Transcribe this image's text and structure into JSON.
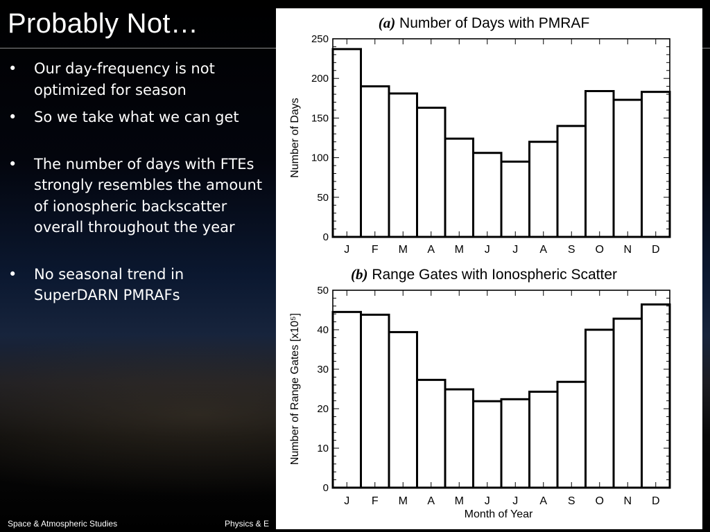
{
  "slide": {
    "title": "Probably Not…",
    "bullets": [
      "Our day-frequency is not optimized for season",
      "So we take what we can get",
      "The number of days with FTEs strongly resembles the amount of ionospheric backscatter overall throughout the year",
      "No seasonal trend in SuperDARN PMRAFs"
    ],
    "bullet_glyph": "•",
    "footer_left": "Space & Atmospheric Studies",
    "footer_mid": "Physics & E"
  },
  "chart_data": [
    {
      "type": "bar",
      "panel_label": "(a)",
      "title": "Number of Days with PMRAF",
      "ylabel": "Number of Days",
      "xlabel": "",
      "categories": [
        "J",
        "F",
        "M",
        "A",
        "M",
        "J",
        "J",
        "A",
        "S",
        "O",
        "N",
        "D"
      ],
      "values": [
        237,
        190,
        181,
        163,
        124,
        106,
        95,
        120,
        140,
        184,
        173,
        183
      ],
      "ylim": [
        0,
        250
      ],
      "yticks": [
        0,
        50,
        100,
        150,
        200,
        250
      ],
      "grid": false
    },
    {
      "type": "bar",
      "panel_label": "(b)",
      "title": "Range Gates with Ionospheric Scatter",
      "ylabel": "Number of Range Gates [x10⁵]",
      "xlabel": "Month of Year",
      "categories": [
        "J",
        "F",
        "M",
        "A",
        "M",
        "J",
        "J",
        "A",
        "S",
        "O",
        "N",
        "D"
      ],
      "values": [
        44.5,
        43.8,
        39.4,
        27.3,
        24.9,
        21.9,
        22.4,
        24.3,
        26.8,
        40.0,
        42.8,
        46.4
      ],
      "ylim": [
        0,
        50
      ],
      "yticks": [
        0,
        10,
        20,
        30,
        40,
        50
      ],
      "grid": false
    }
  ]
}
